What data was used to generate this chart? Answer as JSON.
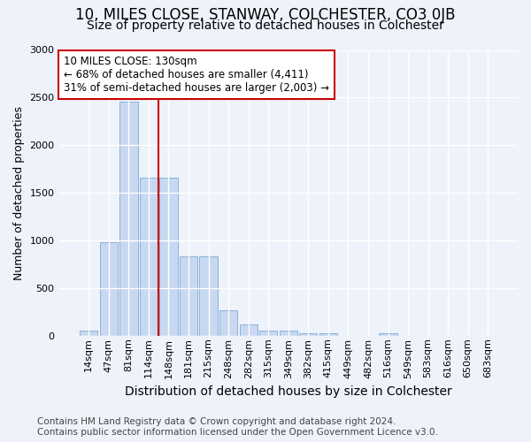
{
  "title": "10, MILES CLOSE, STANWAY, COLCHESTER, CO3 0JB",
  "subtitle": "Size of property relative to detached houses in Colchester",
  "xlabel": "Distribution of detached houses by size in Colchester",
  "ylabel": "Number of detached properties",
  "categories": [
    "14sqm",
    "47sqm",
    "81sqm",
    "114sqm",
    "148sqm",
    "181sqm",
    "215sqm",
    "248sqm",
    "282sqm",
    "315sqm",
    "349sqm",
    "382sqm",
    "415sqm",
    "449sqm",
    "482sqm",
    "516sqm",
    "549sqm",
    "583sqm",
    "616sqm",
    "650sqm",
    "683sqm"
  ],
  "values": [
    50,
    980,
    2460,
    1660,
    1660,
    830,
    830,
    270,
    120,
    55,
    55,
    30,
    30,
    0,
    0,
    30,
    0,
    0,
    0,
    0,
    0
  ],
  "bar_color": "#c8d8f0",
  "bar_edge_color": "#7aaad0",
  "vline_x": 3.5,
  "vline_color": "#cc0000",
  "annotation_text": "10 MILES CLOSE: 130sqm\n← 68% of detached houses are smaller (4,411)\n31% of semi-detached houses are larger (2,003) →",
  "annotation_box_facecolor": "#ffffff",
  "annotation_box_edgecolor": "#cc0000",
  "ylim": [
    0,
    3000
  ],
  "yticks": [
    0,
    500,
    1000,
    1500,
    2000,
    2500,
    3000
  ],
  "footer_line1": "Contains HM Land Registry data © Crown copyright and database right 2024.",
  "footer_line2": "Contains public sector information licensed under the Open Government Licence v3.0.",
  "bg_color": "#eef2fb",
  "grid_color": "#ffffff",
  "title_fontsize": 12,
  "subtitle_fontsize": 10,
  "xlabel_fontsize": 10,
  "ylabel_fontsize": 9,
  "tick_fontsize": 8,
  "annotation_fontsize": 8.5,
  "footer_fontsize": 7.5
}
